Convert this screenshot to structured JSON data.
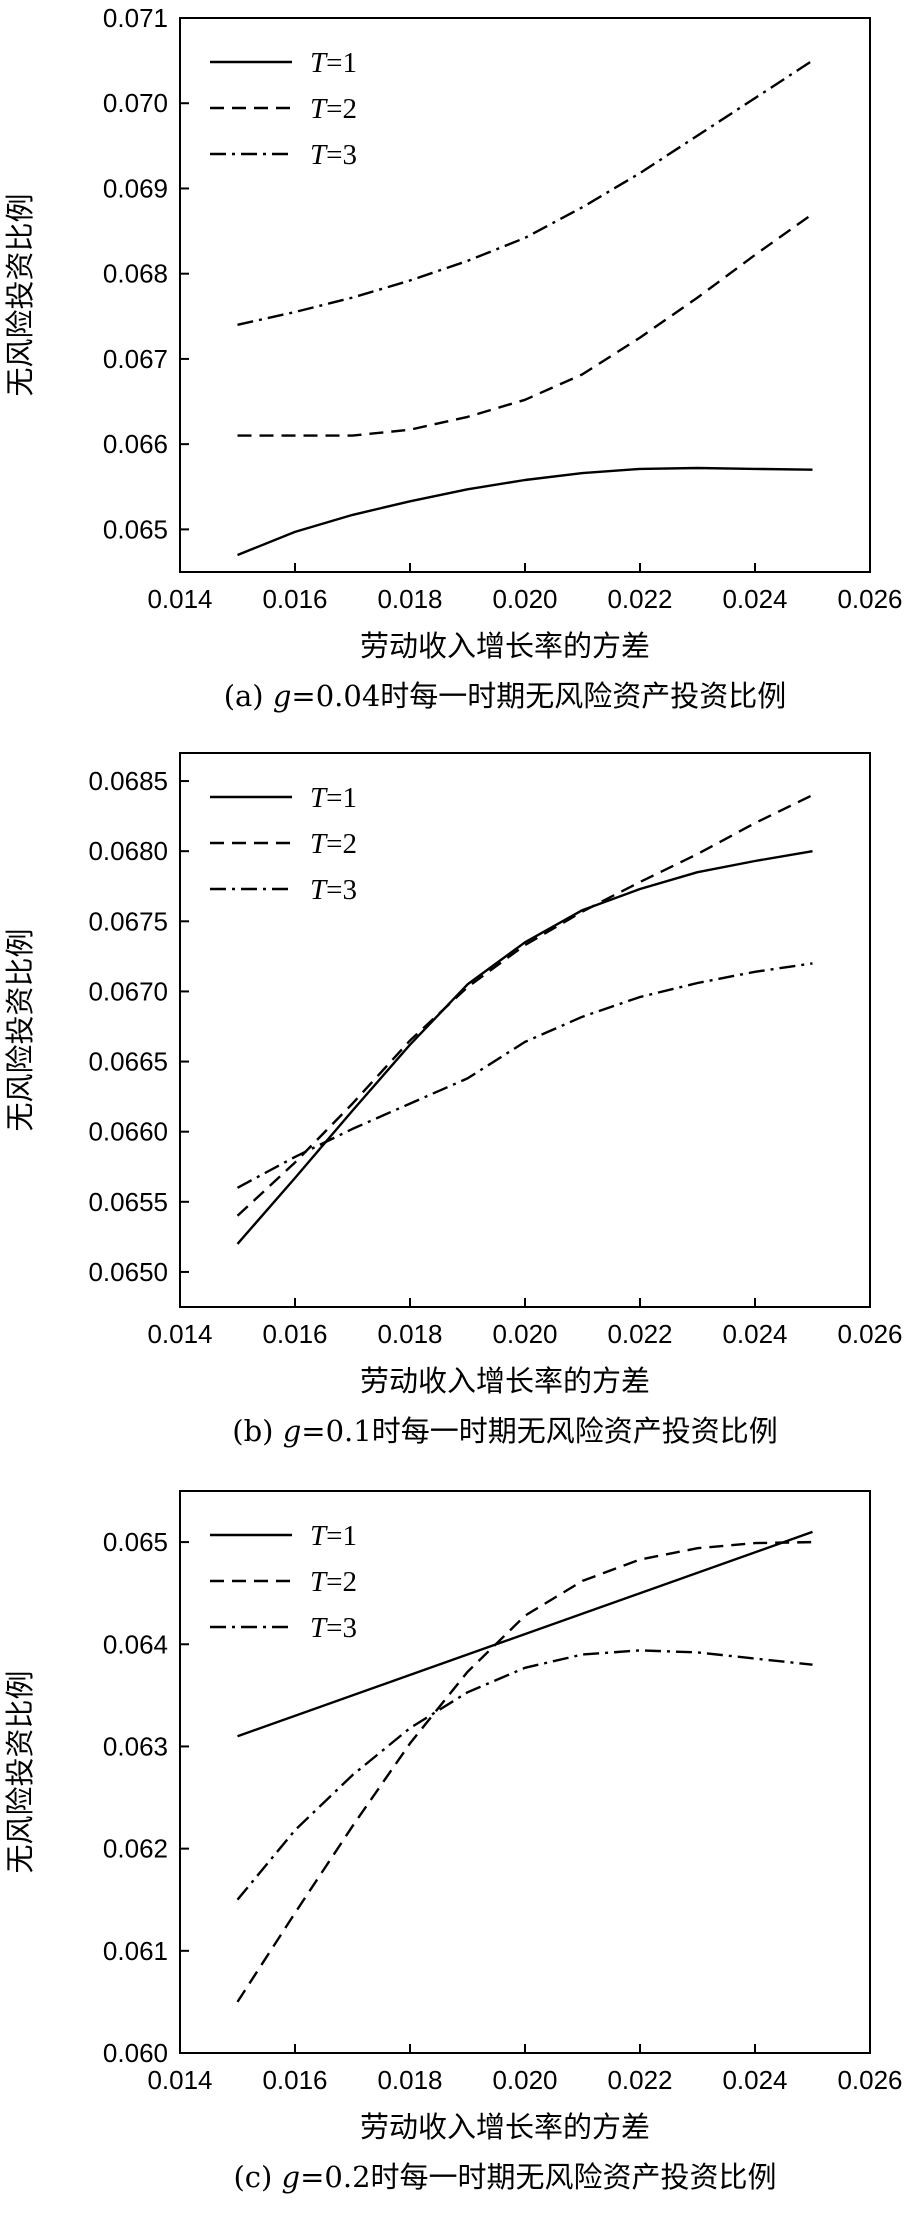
{
  "chart_data": [
    {
      "type": "line",
      "caption": {
        "prefix": "(a) ",
        "var": "g",
        "rest": "=0.04时每一时期无风险资产投资比例"
      },
      "xlabel": "劳动收入增长率的方差",
      "ylabel": "无风险投资比例",
      "xlim": [
        0.014,
        0.026
      ],
      "ylim": [
        0.0645,
        0.071
      ],
      "x_ticks": [
        "0.014",
        "0.016",
        "0.018",
        "0.020",
        "0.022",
        "0.024",
        "0.026"
      ],
      "y_ticks": [
        "0.065",
        "0.066",
        "0.067",
        "0.068",
        "0.069",
        "0.070",
        "0.071"
      ],
      "legend_position": "top-left",
      "series": [
        {
          "name": {
            "var": "T",
            "rest": "=1"
          },
          "style": "solid",
          "x": [
            0.015,
            0.016,
            0.017,
            0.018,
            0.019,
            0.02,
            0.021,
            0.022,
            0.023,
            0.024,
            0.025
          ],
          "y": [
            0.0647,
            0.06497,
            0.06517,
            0.06533,
            0.06547,
            0.06558,
            0.06566,
            0.06571,
            0.06572,
            0.06571,
            0.0657
          ]
        },
        {
          "name": {
            "var": "T",
            "rest": "=2"
          },
          "style": "dashed",
          "x": [
            0.015,
            0.016,
            0.017,
            0.018,
            0.019,
            0.02,
            0.021,
            0.022,
            0.023,
            0.024,
            0.025
          ],
          "y": [
            0.0661,
            0.0661,
            0.0661,
            0.06617,
            0.06632,
            0.06652,
            0.06682,
            0.06725,
            0.06772,
            0.06822,
            0.0687
          ]
        },
        {
          "name": {
            "var": "T",
            "rest": "=3"
          },
          "style": "dashdot",
          "x": [
            0.015,
            0.016,
            0.017,
            0.018,
            0.019,
            0.02,
            0.021,
            0.022,
            0.023,
            0.024,
            0.025
          ],
          "y": [
            0.0674,
            0.06755,
            0.06772,
            0.06792,
            0.06815,
            0.06842,
            0.06878,
            0.06918,
            0.06962,
            0.07006,
            0.0705
          ]
        }
      ]
    },
    {
      "type": "line",
      "caption": {
        "prefix": "(b) ",
        "var": "g",
        "rest": "=0.1时每一时期无风险资产投资比例"
      },
      "xlabel": "劳动收入增长率的方差",
      "ylabel": "无风险投资比例",
      "xlim": [
        0.014,
        0.026
      ],
      "ylim": [
        0.06475,
        0.0687
      ],
      "x_ticks": [
        "0.014",
        "0.016",
        "0.018",
        "0.020",
        "0.022",
        "0.024",
        "0.026"
      ],
      "y_ticks": [
        "0.0650",
        "0.0655",
        "0.0660",
        "0.0665",
        "0.0670",
        "0.0675",
        "0.0680",
        "0.0685"
      ],
      "legend_position": "top-left",
      "series": [
        {
          "name": {
            "var": "T",
            "rest": "=1"
          },
          "style": "solid",
          "x": [
            0.015,
            0.016,
            0.017,
            0.018,
            0.019,
            0.02,
            0.021,
            0.022,
            0.023,
            0.024,
            0.025
          ],
          "y": [
            0.0652,
            0.06567,
            0.06615,
            0.06662,
            0.06705,
            0.06735,
            0.06758,
            0.06773,
            0.06785,
            0.06793,
            0.068
          ]
        },
        {
          "name": {
            "var": "T",
            "rest": "=2"
          },
          "style": "dashed",
          "x": [
            0.015,
            0.016,
            0.017,
            0.018,
            0.019,
            0.02,
            0.021,
            0.022,
            0.023,
            0.024,
            0.025
          ],
          "y": [
            0.0654,
            0.06578,
            0.0662,
            0.06665,
            0.06703,
            0.06733,
            0.06757,
            0.06778,
            0.06798,
            0.0682,
            0.0684
          ]
        },
        {
          "name": {
            "var": "T",
            "rest": "=3"
          },
          "style": "dashdot",
          "x": [
            0.015,
            0.016,
            0.017,
            0.018,
            0.019,
            0.02,
            0.021,
            0.022,
            0.023,
            0.024,
            0.025
          ],
          "y": [
            0.0656,
            0.06582,
            0.06602,
            0.0662,
            0.06638,
            0.06664,
            0.06682,
            0.06696,
            0.06706,
            0.06714,
            0.0672
          ]
        }
      ]
    },
    {
      "type": "line",
      "caption": {
        "prefix": "(c) ",
        "var": "g",
        "rest": "=0.2时每一时期无风险资产投资比例"
      },
      "xlabel": "劳动收入增长率的方差",
      "ylabel": "无风险投资比例",
      "xlim": [
        0.014,
        0.026
      ],
      "ylim": [
        0.06,
        0.0655
      ],
      "x_ticks": [
        "0.014",
        "0.016",
        "0.018",
        "0.020",
        "0.022",
        "0.024",
        "0.026"
      ],
      "y_ticks": [
        "0.060",
        "0.061",
        "0.062",
        "0.063",
        "0.064",
        "0.065"
      ],
      "legend_position": "top-left",
      "series": [
        {
          "name": {
            "var": "T",
            "rest": "=1"
          },
          "style": "solid",
          "x": [
            0.015,
            0.025
          ],
          "y": [
            0.0631,
            0.0651
          ]
        },
        {
          "name": {
            "var": "T",
            "rest": "=2"
          },
          "style": "dashed",
          "x": [
            0.015,
            0.016,
            0.017,
            0.018,
            0.019,
            0.02,
            0.021,
            0.022,
            0.023,
            0.024,
            0.025
          ],
          "y": [
            0.0605,
            0.06137,
            0.06222,
            0.06303,
            0.06373,
            0.06428,
            0.06462,
            0.06483,
            0.06494,
            0.06499,
            0.065
          ]
        },
        {
          "name": {
            "var": "T",
            "rest": "=3"
          },
          "style": "dashdot",
          "x": [
            0.015,
            0.016,
            0.017,
            0.018,
            0.019,
            0.02,
            0.021,
            0.022,
            0.023,
            0.024,
            0.025
          ],
          "y": [
            0.0615,
            0.06218,
            0.06272,
            0.06318,
            0.06353,
            0.06377,
            0.0639,
            0.06394,
            0.06392,
            0.06386,
            0.0638
          ]
        }
      ]
    }
  ]
}
